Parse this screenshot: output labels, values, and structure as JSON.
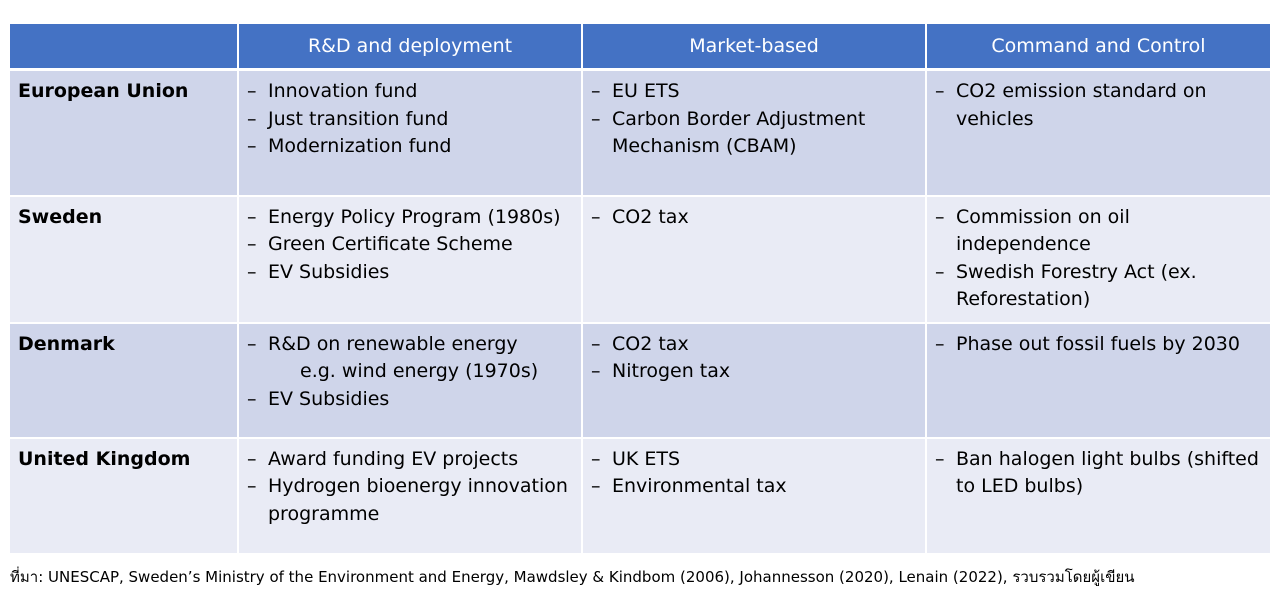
{
  "headers": [
    "",
    "R&D and deployment",
    "Market-based",
    "Command and Control"
  ],
  "rows": [
    {
      "country": "European Union",
      "rd": [
        {
          "text": "Innovation fund"
        },
        {
          "text": "Just transition fund"
        },
        {
          "text": "Modernization fund"
        }
      ],
      "market": [
        {
          "text": "EU ETS"
        },
        {
          "text": "Carbon Border Adjustment Mechanism (CBAM)"
        }
      ],
      "command": [
        {
          "text": "CO2 emission standard on vehicles"
        }
      ]
    },
    {
      "country": "Sweden",
      "rd": [
        {
          "text": "Energy Policy Program (1980s)"
        },
        {
          "text": "Green Certificate Scheme"
        },
        {
          "text": "EV Subsidies"
        }
      ],
      "market": [
        {
          "text": "CO2 tax"
        }
      ],
      "command": [
        {
          "text": "Commission on oil independence"
        },
        {
          "text": "Swedish Forestry Act (ex. Reforestation)"
        }
      ]
    },
    {
      "country": "Denmark",
      "rd": [
        {
          "text": "R&D on renewable energy",
          "sub": "e.g. wind energy (1970s)"
        },
        {
          "text": "EV Subsidies"
        }
      ],
      "market": [
        {
          "text": "CO2 tax"
        },
        {
          "text": "Nitrogen tax"
        }
      ],
      "command": [
        {
          "text": "Phase out fossil fuels by 2030"
        }
      ]
    },
    {
      "country": "United Kingdom",
      "rd": [
        {
          "text": "Award funding EV projects"
        },
        {
          "text": "Hydrogen bioenergy innovation programme"
        }
      ],
      "market": [
        {
          "text": "UK ETS"
        },
        {
          "text": "Environmental tax"
        }
      ],
      "command": [
        {
          "text": "Ban halogen light bulbs (shifted to LED bulbs)"
        }
      ]
    }
  ],
  "source": "ที่มา: UNESCAP, Sweden’s Ministry of the Environment and Energy, Mawdsley & Kindbom (2006), Johannesson (2020), Lenain (2022), รวบรวมโดยผู้เขียน",
  "colors": {
    "header": "#4472c4",
    "row_dark": "#cfd5ea",
    "row_light": "#e9ebf5"
  }
}
